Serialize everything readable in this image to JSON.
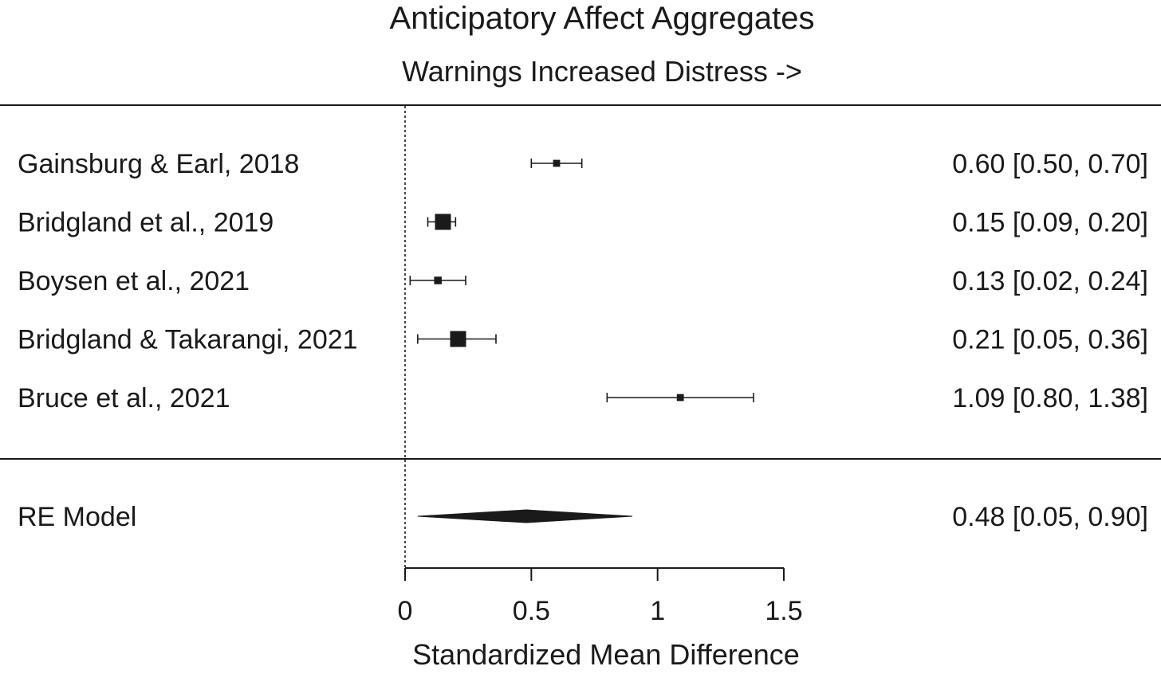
{
  "chart_data": {
    "type": "forest",
    "title": "Anticipatory Affect Aggregates",
    "subtitle": "Warnings Increased Distress ->",
    "xlabel": "Standardized Mean Difference",
    "xlim": [
      0,
      1.5
    ],
    "xticks": [
      0,
      0.5,
      1,
      1.5
    ],
    "xtick_labels": [
      "0",
      "0.5",
      "1",
      "1.5"
    ],
    "reference_line": 0,
    "studies": [
      {
        "label": "Gainsburg & Earl, 2018",
        "estimate": 0.6,
        "ci": [
          0.5,
          0.7
        ],
        "text": "0.60 [0.50, 0.70]",
        "weight": 0.2
      },
      {
        "label": "Bridgland et al., 2019",
        "estimate": 0.15,
        "ci": [
          0.09,
          0.2
        ],
        "text": "0.15 [0.09, 0.20]",
        "weight": 1.0
      },
      {
        "label": "Boysen et al., 2021",
        "estimate": 0.13,
        "ci": [
          0.02,
          0.24
        ],
        "text": "0.13 [0.02, 0.24]",
        "weight": 0.25
      },
      {
        "label": "Bridgland & Takarangi, 2021",
        "estimate": 0.21,
        "ci": [
          0.05,
          0.36
        ],
        "text": "0.21 [0.05, 0.36]",
        "weight": 1.0
      },
      {
        "label": "Bruce et al., 2021",
        "estimate": 1.09,
        "ci": [
          0.8,
          1.38
        ],
        "text": "1.09 [0.80, 1.38]",
        "weight": 0.2
      }
    ],
    "summary": {
      "label": "RE Model",
      "estimate": 0.48,
      "ci": [
        0.05,
        0.9
      ],
      "text": "0.48 [0.05, 0.90]"
    }
  }
}
